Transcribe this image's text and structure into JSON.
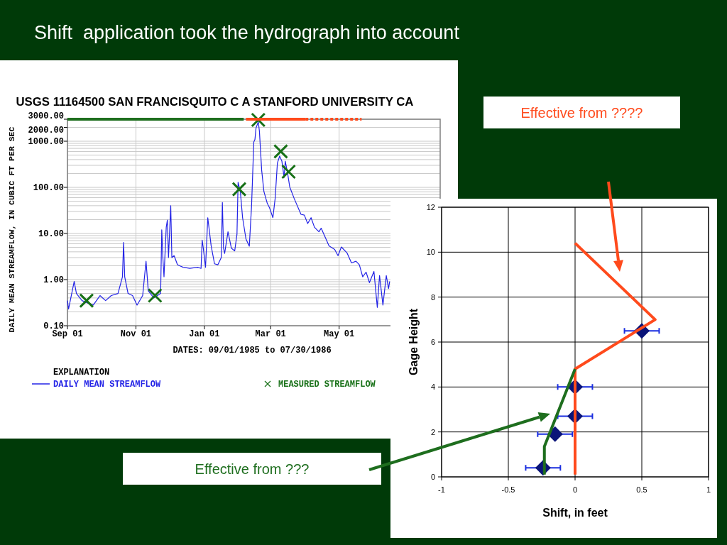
{
  "chart_data": [
    {
      "type": "line",
      "title": "Shift  application took the hydrograph into account",
      "subtitle": "USGS 11164500 SAN FRANCISQUITO C A STANFORD UNIVERSITY CA",
      "xlabel": "DATES: 09/01/1985 to 07/30/1986",
      "ylabel": "DAILY MEAN STREAMFLOW, IN CUBIC FT PER SEC",
      "legend_title": "EXPLANATION",
      "legend": "bottom",
      "log": "y",
      "grid": true,
      "xlim": [
        "1985-09-01",
        "1986-07-30"
      ],
      "ylim": [
        0.1,
        3000
      ],
      "xticks": [
        {
          "value": "1985-09-01",
          "label": "Sep 01"
        },
        {
          "value": "1985-11-01",
          "label": "Nov 01"
        },
        {
          "value": "1986-01-01",
          "label": "Jan 01"
        },
        {
          "value": "1986-03-01",
          "label": "Mar 01"
        },
        {
          "value": "1986-05-01",
          "label": "May 01"
        }
      ],
      "yticks": [
        {
          "value": 0.1,
          "label": "0.10"
        },
        {
          "value": 1,
          "label": "1.00"
        },
        {
          "value": 10,
          "label": "10.00"
        },
        {
          "value": 100,
          "label": "100.00"
        },
        {
          "value": 1000,
          "label": "1000.00"
        },
        {
          "value": 2000,
          "label": "2000.00"
        },
        {
          "value": 3000,
          "label": "3000.00"
        }
      ],
      "series": [
        {
          "name": "DAILY MEAN STREAMFLOW",
          "color": "#2323e6",
          "x": [
            "1985-09-01",
            "1985-09-02",
            "1985-09-04",
            "1985-09-07",
            "1985-09-09",
            "1985-09-14",
            "1985-09-19",
            "1985-09-24",
            "1985-09-30",
            "1985-10-05",
            "1985-10-10",
            "1985-10-16",
            "1985-10-20",
            "1985-10-21",
            "1985-10-22",
            "1985-10-25",
            "1985-10-29",
            "1985-11-02",
            "1985-11-07",
            "1985-11-10",
            "1985-11-12",
            "1985-11-17",
            "1985-11-23",
            "1985-11-24",
            "1985-11-25",
            "1985-11-26",
            "1985-11-28",
            "1985-11-29",
            "1985-11-30",
            "1985-12-02",
            "1985-12-03",
            "1985-12-05",
            "1985-12-08",
            "1985-12-13",
            "1985-12-19",
            "1985-12-26",
            "1985-12-29",
            "1985-12-30",
            "1985-12-31",
            "1986-01-02",
            "1986-01-04",
            "1986-01-07",
            "1986-01-10",
            "1986-01-13",
            "1986-01-16",
            "1986-01-17",
            "1986-01-18",
            "1986-01-19",
            "1986-01-22",
            "1986-01-25",
            "1986-01-28",
            "1986-01-30",
            "1986-01-31",
            "1986-02-02",
            "1986-02-04",
            "1986-02-07",
            "1986-02-10",
            "1986-02-12",
            "1986-02-14",
            "1986-02-15",
            "1986-02-16",
            "1986-02-18",
            "1986-02-19",
            "1986-02-21",
            "1986-02-23",
            "1986-02-26",
            "1986-02-28",
            "1986-03-03",
            "1986-03-05",
            "1986-03-07",
            "1986-03-09",
            "1986-03-11",
            "1986-03-13",
            "1986-03-14",
            "1986-03-16",
            "1986-03-18",
            "1986-03-22",
            "1986-03-28",
            "1986-03-31",
            "1986-04-03",
            "1986-04-06",
            "1986-04-09",
            "1986-04-13",
            "1986-04-15",
            "1986-04-22",
            "1986-04-27",
            "1986-04-30",
            "1986-05-03",
            "1986-05-08",
            "1986-05-12",
            "1986-05-16",
            "1986-05-19",
            "1986-05-22",
            "1986-05-25",
            "1986-05-28",
            "1986-06-01",
            "1986-06-04",
            "1986-06-06",
            "1986-06-09",
            "1986-06-12",
            "1986-06-14",
            "1986-06-15"
          ],
          "values": [
            0.35,
            0.23,
            0.4,
            0.91,
            0.5,
            0.35,
            0.31,
            0.28,
            0.45,
            0.35,
            0.45,
            0.5,
            1.15,
            6.4,
            1.15,
            0.5,
            0.45,
            0.28,
            0.45,
            2.5,
            0.57,
            0.4,
            0.5,
            12,
            3,
            1.15,
            13.7,
            19.5,
            3,
            40,
            3,
            3.3,
            2.1,
            1.85,
            1.75,
            1.85,
            1.75,
            7.2,
            4.8,
            1.85,
            22,
            5.4,
            2.2,
            2.1,
            3,
            47,
            4.8,
            3.7,
            10.9,
            4.8,
            4.2,
            9.6,
            129,
            81,
            22,
            7.6,
            5.3,
            40,
            966,
            1090,
            1950,
            2630,
            1640,
            235,
            81,
            45,
            36,
            22,
            57,
            335,
            475,
            370,
            164,
            370,
            210,
            102,
            57,
            26,
            25,
            16.4,
            22,
            13.7,
            10.9,
            13,
            5.4,
            4.5,
            3.3,
            5.1,
            3.8,
            2.3,
            2.5,
            2.1,
            1.15,
            1.45,
            0.86,
            1.5,
            0.25,
            1.22,
            0.28,
            1.22,
            0.64,
            0.91
          ]
        },
        {
          "name": "MEASURED STREAMFLOW",
          "type": "scatter",
          "marker": "cross",
          "color": "#177017",
          "x": [
            "1985-09-18",
            "1985-11-18",
            "1986-02-01",
            "1986-02-18",
            "1986-03-10",
            "1986-03-17"
          ],
          "values": [
            0.35,
            0.45,
            91,
            2900,
            600,
            218
          ]
        },
        {
          "color": "#1e6e1e",
          "line_style": "solid",
          "x": [
            "1985-09-01",
            "1986-02-05"
          ],
          "values": [
            3000,
            3000
          ]
        },
        {
          "color": "#ff4a1c",
          "line_style": "solid",
          "x": [
            "1986-02-07",
            "1986-04-01"
          ],
          "values": [
            3000,
            3000
          ]
        },
        {
          "color": "#ff4a1c",
          "line_style": "dotted",
          "x": [
            "1986-04-01",
            "1986-05-21"
          ],
          "values": [
            3000,
            3000
          ]
        }
      ]
    },
    {
      "type": "scatter",
      "xlabel": "Shift, in feet",
      "ylabel": "Gage Height",
      "grid": true,
      "xlim": [
        -1,
        1
      ],
      "ylim": [
        0,
        12
      ],
      "xticks": [
        -1,
        -0.5,
        0,
        0.5,
        1
      ],
      "yticks": [
        0,
        2,
        4,
        6,
        8,
        10,
        12
      ],
      "annotations": [
        "Effective from ????",
        "Effective from ???"
      ],
      "series": [
        {
          "marker": "diamond",
          "color": "#0a1478",
          "x": [
            0.5,
            0,
            0,
            -0.15,
            -0.24
          ],
          "values": [
            6.5,
            4,
            2.7,
            1.9,
            0.4
          ],
          "xerrors": [
            0.13,
            0.13,
            0.13,
            0.13,
            0.13
          ]
        },
        {
          "type": "line",
          "color": "#ff4a1c",
          "x": [
            0,
            0,
            0.6,
            0
          ],
          "values": [
            0.1,
            4.8,
            7,
            10.4
          ]
        },
        {
          "type": "line",
          "color": "#1e6e1e",
          "x": [
            -0.23,
            -0.23,
            0
          ],
          "values": [
            0.1,
            1.35,
            4.8
          ]
        }
      ]
    }
  ]
}
